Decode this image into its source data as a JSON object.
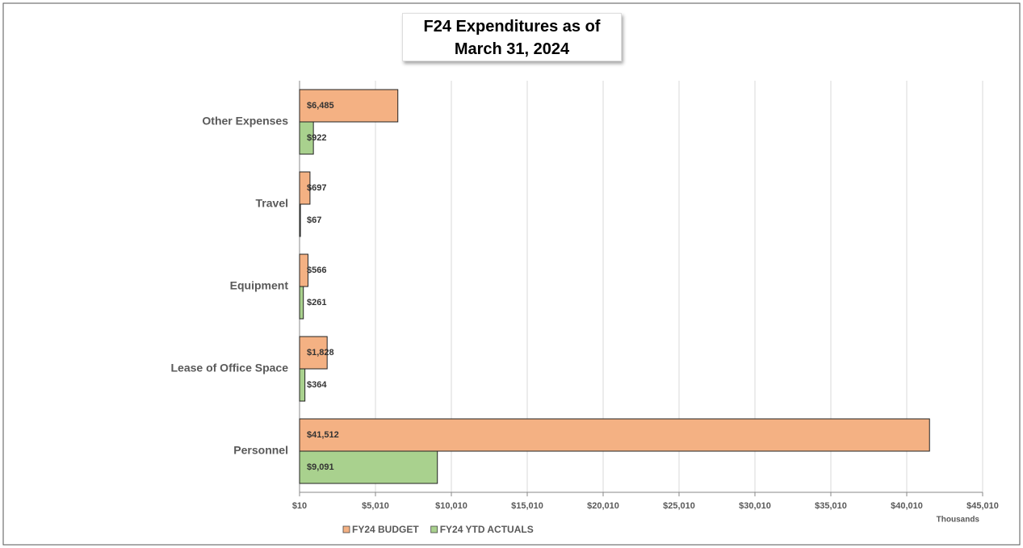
{
  "chart_data": {
    "type": "hbar",
    "title": "F24 Expenditures as of March 31, 2024",
    "categories": [
      "Other Expenses",
      "Travel",
      "Equipment",
      "Lease of Office Space",
      "Personnel"
    ],
    "series": [
      {
        "name": "FY24 BUDGET",
        "color": "#f4b183",
        "values": [
          6485,
          697,
          566,
          1828,
          41512
        ],
        "value_labels": [
          "$6,485",
          "$697",
          "$566",
          "$1,828",
          "$41,512"
        ]
      },
      {
        "name": "FY24 YTD ACTUALS",
        "color": "#a9d18e",
        "values": [
          922,
          67,
          261,
          364,
          9091
        ],
        "value_labels": [
          "$922",
          "$67",
          "$261",
          "$364",
          "$9,091"
        ]
      }
    ],
    "xlabel": "Thousands",
    "xlim": [
      10,
      45010
    ],
    "xticks": [
      {
        "value": 10,
        "label": "$10"
      },
      {
        "value": 5010,
        "label": "$5,010"
      },
      {
        "value": 10010,
        "label": "$10,010"
      },
      {
        "value": 15010,
        "label": "$15,010"
      },
      {
        "value": 20010,
        "label": "$20,010"
      },
      {
        "value": 25010,
        "label": "$25,010"
      },
      {
        "value": 30010,
        "label": "$30,010"
      },
      {
        "value": 35010,
        "label": "$35,010"
      },
      {
        "value": 40010,
        "label": "$40,010"
      },
      {
        "value": 45010,
        "label": "$45,010"
      }
    ],
    "grid": true,
    "legend": "bottom"
  }
}
